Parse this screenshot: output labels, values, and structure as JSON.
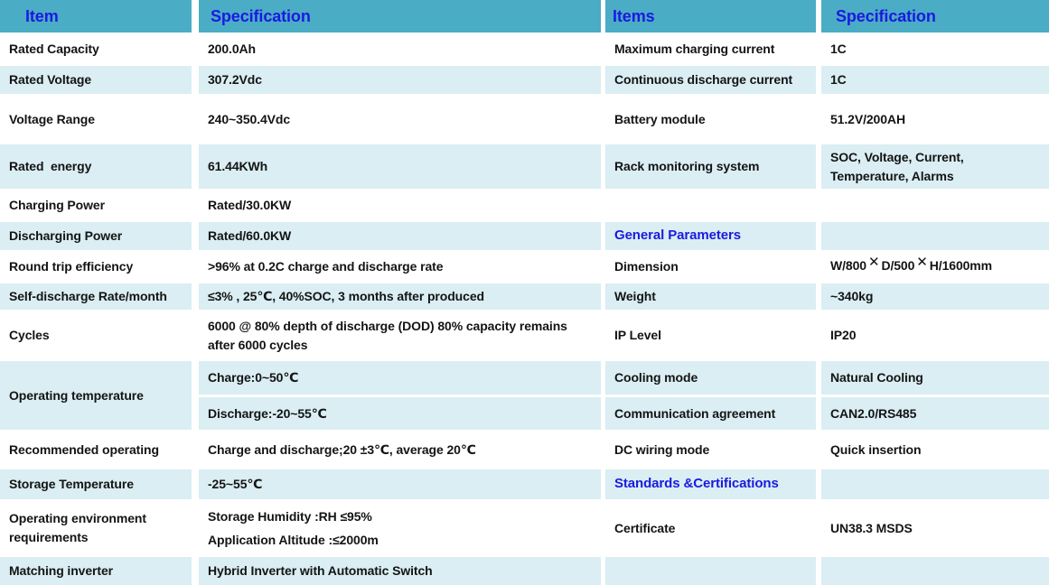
{
  "colors": {
    "header_bg": "#4BACC6",
    "alt_row_bg": "#DAEEF3",
    "row_bg": "#FFFFFF",
    "header_text_blue": "#1A1AE0",
    "section_text_blue": "#1A1AE0",
    "body_text": "#141414"
  },
  "left": {
    "headers": [
      "Item",
      "Specification"
    ],
    "rows": [
      {
        "item": "Rated Capacity",
        "spec": "200.0Ah"
      },
      {
        "item": "Rated Voltage",
        "spec": "307.2Vdc"
      },
      {
        "item": "Voltage Range",
        "spec": "240~350.4Vdc"
      },
      {
        "item": "Rated  energy",
        "spec": "61.44KWh"
      },
      {
        "item": "Charging Power",
        "spec": "Rated/30.0KW"
      },
      {
        "item": "Discharging Power",
        "spec": "Rated/60.0KW"
      },
      {
        "item": "Round trip efficiency",
        "spec": ">96% at 0.2C charge and discharge rate"
      },
      {
        "item": "Self-discharge Rate/month",
        "spec": "≤3% , 25℃, 40%SOC, 3 months after produced"
      },
      {
        "item": "Cycles",
        "spec": "6000 @ 80% depth of discharge (DOD) 80% capacity remains after 6000 cycles"
      },
      {
        "item": "Operating temperature",
        "spec_charge": "Charge:0~50℃",
        "spec_discharge": "Discharge:-20~55℃"
      },
      {
        "item": "Recommended operating",
        "spec": "Charge and discharge;20 ±3℃, average 20℃"
      },
      {
        "item": "Storage Temperature",
        "spec": "-25~55℃"
      },
      {
        "item": "Operating environment requirements",
        "spec_line1": "Storage Humidity :RH ≤95%",
        "spec_line2": "Application Altitude :≤2000m"
      },
      {
        "item": "Matching inverter",
        "spec": "Hybrid Inverter with Automatic Switch"
      }
    ]
  },
  "right": {
    "headers": [
      "Items",
      "Specification"
    ],
    "rows": [
      {
        "item": "Maximum charging current",
        "spec": "1C"
      },
      {
        "item": "Continuous discharge current",
        "spec": "1C"
      },
      {
        "item": "Battery module",
        "spec": "51.2V/200AH"
      },
      {
        "item": "Rack monitoring system",
        "spec": "SOC, Voltage, Current, Temperature, Alarms"
      },
      {
        "item": "",
        "spec": ""
      },
      {
        "item": "General Parameters",
        "spec": "",
        "section": true
      },
      {
        "item": "Dimension",
        "spec_parts": [
          "W/800",
          "D/500",
          "H/1600mm"
        ],
        "times_symbol": "✕"
      },
      {
        "item": "Weight",
        "spec": "~340kg"
      },
      {
        "item": "IP Level",
        "spec": "IP20"
      },
      {
        "item": "Cooling mode",
        "spec": "Natural Cooling"
      },
      {
        "item": "Communication agreement",
        "spec": "CAN2.0/RS485"
      },
      {
        "item": "DC wiring mode",
        "spec": "Quick insertion"
      },
      {
        "item": "Standards &Certifications",
        "spec": "",
        "section": true
      },
      {
        "item": "Certificate",
        "spec": "UN38.3 MSDS"
      },
      {
        "item": "",
        "spec": ""
      }
    ]
  }
}
